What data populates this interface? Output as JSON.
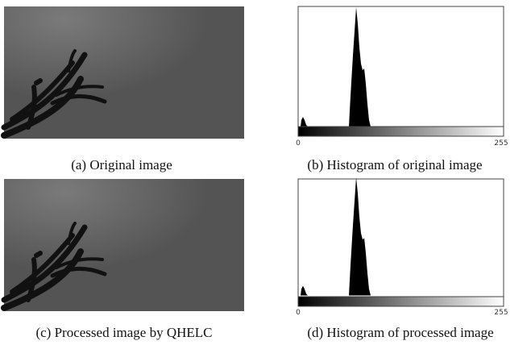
{
  "figure": {
    "panels": [
      {
        "caption": "(a) Original image"
      },
      {
        "caption": "(b) Histogram of original image",
        "axis_labels": [
          "0",
          "255"
        ]
      },
      {
        "caption": "(c) Processed image by QHELC"
      },
      {
        "caption": "(d) Histogram of processed image",
        "axis_labels": [
          "0",
          "255"
        ]
      }
    ]
  }
}
